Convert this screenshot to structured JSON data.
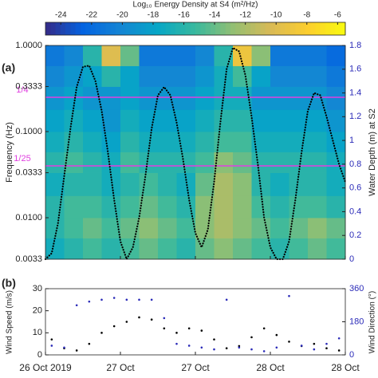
{
  "chart_data": [
    {
      "type": "heatmap",
      "panel_label": "(a)",
      "colorbar_title": "Log₁₀ Energy Density at S4 (m²/Hz)",
      "colorscale": [
        "#352a87",
        "#0363e1",
        "#1485d4",
        "#06a7c6",
        "#38b99e",
        "#92bf73",
        "#d9ba56",
        "#fcce2e",
        "#f9fb0e"
      ],
      "zlim": [
        -25,
        -5.5
      ],
      "zticks": [
        -24,
        -22,
        -20,
        -18,
        -16,
        -14,
        -12,
        -10,
        -8,
        -6
      ],
      "xlim": [
        0,
        48
      ],
      "xticks": [
        0,
        12,
        24,
        36,
        48
      ],
      "xbins": [
        0,
        3,
        6,
        9,
        12,
        15,
        18,
        21,
        24,
        27,
        30,
        33,
        36,
        39,
        42,
        45,
        48
      ],
      "ybins": [
        0.0033,
        0.0058,
        0.01,
        0.018,
        0.0333,
        0.058,
        0.1,
        0.18,
        0.3333,
        0.58,
        1
      ],
      "z": [
        [
          -17,
          -16,
          -15,
          -16,
          -15,
          -14,
          -15,
          -16,
          -14,
          -13,
          -14,
          -15,
          -16,
          -15,
          -14,
          -15
        ],
        [
          -16,
          -15,
          -14,
          -15,
          -14,
          -13,
          -14,
          -15,
          -13,
          -12,
          -13,
          -14,
          -15,
          -14,
          -13,
          -14
        ],
        [
          -16,
          -15,
          -15,
          -16,
          -15,
          -14,
          -15,
          -16,
          -13,
          -12,
          -13,
          -15,
          -16,
          -15,
          -15,
          -16
        ],
        [
          -17,
          -16,
          -16,
          -17,
          -16,
          -15,
          -16,
          -17,
          -14,
          -12,
          -13,
          -16,
          -17,
          -16,
          -16,
          -17
        ],
        [
          -16,
          -15,
          -16,
          -17,
          -15,
          -16,
          -16,
          -16,
          -15,
          -13,
          -14,
          -16,
          -16,
          -16,
          -16,
          -17
        ],
        [
          -17,
          -16,
          -17,
          -18,
          -16,
          -17,
          -17,
          -17,
          -16,
          -15,
          -15,
          -17,
          -17,
          -17,
          -17,
          -18
        ],
        [
          -18,
          -17,
          -18,
          -19,
          -17,
          -18,
          -18,
          -18,
          -17,
          -16,
          -16,
          -18,
          -18,
          -18,
          -18,
          -19
        ],
        [
          -19,
          -18,
          -19,
          -19,
          -18,
          -19,
          -19,
          -19,
          -18,
          -17,
          -17,
          -19,
          -19,
          -19,
          -19,
          -20
        ],
        [
          -20,
          -19,
          -18,
          -16,
          -18,
          -20,
          -20,
          -20,
          -19,
          -17,
          -15,
          -18,
          -20,
          -20,
          -20,
          -21
        ],
        [
          -21,
          -20,
          -16,
          -10,
          -14,
          -21,
          -21,
          -21,
          -20,
          -16,
          -9,
          -13,
          -21,
          -21,
          -21,
          -22
        ]
      ],
      "ylabel": "Frequency (Hz)",
      "log_y": true,
      "ylim": [
        0.0033,
        1
      ],
      "yticks": [
        {
          "value": 1,
          "label": "1.0000"
        },
        {
          "value": 0.3333,
          "label": "0.3333"
        },
        {
          "value": 0.1,
          "label": "0.1000"
        },
        {
          "value": 0.0333,
          "label": "0.0333"
        },
        {
          "value": 0.01,
          "label": "0.0100"
        },
        {
          "value": 0.0033,
          "label": "0.0033"
        }
      ],
      "y2label": "Water Depth (m) at S2",
      "y2color": "#2b2bb8",
      "y2lim": [
        0,
        1.8
      ],
      "y2ticks": [
        0,
        0.2,
        0.4,
        0.6,
        0.8,
        1,
        1.2,
        1.4,
        1.6,
        1.8
      ],
      "hlines": [
        {
          "value": 0.25,
          "label": "1/4"
        },
        {
          "value": 0.04,
          "label": "1/25"
        }
      ],
      "hline_color": "#e040e0",
      "series": [
        {
          "color": "#000000",
          "axis": "y2",
          "x": [
            0,
            1,
            2,
            3,
            4,
            5,
            6,
            7,
            8,
            9,
            10,
            11,
            12,
            13,
            14,
            15,
            16,
            17,
            18,
            19,
            20,
            21,
            22,
            23,
            24,
            25,
            26,
            27,
            28,
            29,
            30,
            31,
            32,
            33,
            34,
            35,
            36,
            37,
            38,
            39,
            40,
            41,
            42,
            43,
            44,
            45,
            46,
            47,
            48
          ],
          "values": [
            0,
            0.05,
            0.3,
            0.7,
            1.1,
            1.45,
            1.62,
            1.63,
            1.5,
            1.25,
            0.9,
            0.5,
            0.15,
            0,
            0.1,
            0.35,
            0.7,
            1.1,
            1.38,
            1.45,
            1.38,
            1.15,
            0.85,
            0.5,
            0.22,
            0.1,
            0.25,
            0.65,
            1.15,
            1.6,
            1.78,
            1.75,
            1.55,
            1.2,
            0.8,
            0.35,
            0.1,
            0,
            0,
            0.15,
            0.5,
            0.9,
            1.25,
            1.4,
            1.38,
            1.2,
            1,
            0.8,
            0.65
          ]
        }
      ]
    },
    {
      "type": "scatter",
      "panel_label": "(b)",
      "xlim": [
        0,
        48
      ],
      "xticks": [
        {
          "value": 0,
          "label": "26 Oct 2019"
        },
        {
          "value": 12,
          "label": "27 Oct"
        },
        {
          "value": 24,
          "label": "27 Oct"
        },
        {
          "value": 36,
          "label": "28 Oct"
        },
        {
          "value": 48,
          "label": "28 Oct"
        }
      ],
      "x": [
        1,
        3,
        5,
        7,
        9,
        11,
        13,
        15,
        17,
        19,
        21,
        23,
        25,
        27,
        29,
        31,
        33,
        35,
        37,
        39,
        41,
        43,
        45,
        47
      ],
      "ylabel": "Wind Speed (m/s)",
      "ylim": [
        0,
        30
      ],
      "yticks": [
        0,
        10,
        20,
        30
      ],
      "y2label": "Wind Direction (°)",
      "y2color": "#2b2bb8",
      "y2lim": [
        0,
        360
      ],
      "y2ticks": [
        0,
        180,
        360
      ],
      "series": [
        {
          "color": "#000000",
          "axis": "y",
          "values": [
            7,
            3,
            2,
            5,
            10,
            13,
            15,
            17,
            16,
            12,
            10,
            12,
            11,
            7,
            3,
            4,
            8,
            12,
            9,
            6,
            4,
            5,
            3,
            2
          ]
        },
        {
          "color": "#2b2bb8",
          "axis": "y2",
          "values": [
            50,
            40,
            270,
            290,
            300,
            310,
            300,
            300,
            300,
            200,
            60,
            50,
            40,
            30,
            300,
            40,
            30,
            20,
            40,
            320,
            50,
            30,
            60,
            90
          ]
        }
      ]
    }
  ]
}
